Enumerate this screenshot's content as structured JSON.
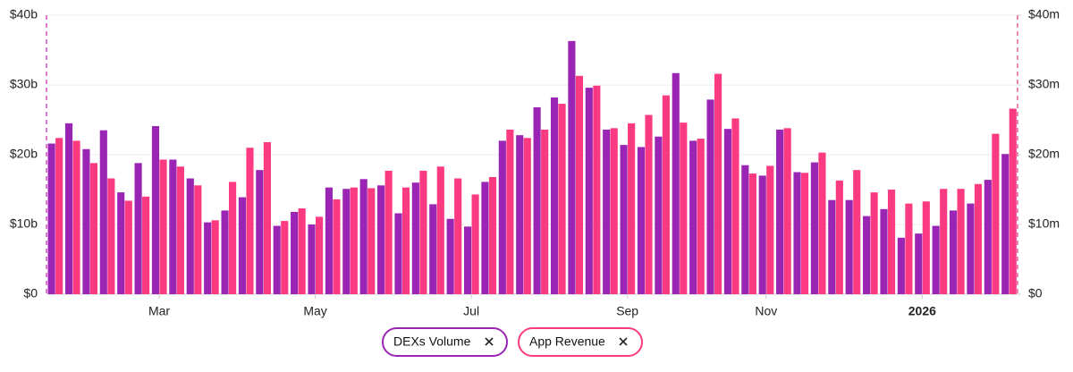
{
  "chart_data": {
    "type": "bar",
    "categories": [
      null,
      null,
      null,
      null,
      null,
      null,
      "Mar",
      null,
      null,
      null,
      null,
      null,
      null,
      null,
      null,
      "May",
      null,
      null,
      null,
      null,
      null,
      null,
      null,
      null,
      "Jul",
      null,
      null,
      null,
      null,
      null,
      null,
      null,
      null,
      "Sep",
      null,
      null,
      null,
      null,
      null,
      null,
      null,
      "Nov",
      null,
      null,
      null,
      null,
      null,
      null,
      null,
      null,
      "2026",
      null,
      null,
      null,
      null,
      null
    ],
    "series": [
      {
        "name": "DEXs Volume",
        "color": "#9a25b5",
        "axis": "y",
        "values": [
          21.6,
          24.5,
          20.8,
          23.5,
          14.6,
          18.8,
          24.1,
          19.3,
          16.6,
          10.3,
          12.0,
          13.9,
          17.8,
          9.8,
          11.8,
          10.0,
          15.3,
          15.1,
          16.5,
          15.6,
          11.6,
          16.0,
          12.9,
          10.8,
          9.7,
          16.1,
          22.0,
          22.8,
          26.8,
          28.2,
          36.3,
          29.6,
          23.6,
          21.4,
          21.1,
          22.6,
          31.7,
          22.0,
          27.9,
          23.7,
          18.5,
          17.0,
          23.6,
          17.5,
          18.9,
          13.5,
          13.5,
          11.2,
          12.2,
          8.1,
          8.7,
          9.8,
          12.0,
          13.0,
          16.4,
          20.1
        ]
      },
      {
        "name": "App Revenue",
        "color": "#fc3a82",
        "axis": "y2",
        "values": [
          22.4,
          22.0,
          18.8,
          16.6,
          13.4,
          14.0,
          19.3,
          18.3,
          15.6,
          10.6,
          16.1,
          21.0,
          21.8,
          10.5,
          12.3,
          11.1,
          13.6,
          15.3,
          15.2,
          17.7,
          15.3,
          17.7,
          18.3,
          16.6,
          14.3,
          16.8,
          23.6,
          22.4,
          23.6,
          27.3,
          31.3,
          29.9,
          23.8,
          24.5,
          25.7,
          28.5,
          24.6,
          22.3,
          31.6,
          25.2,
          17.3,
          18.4,
          23.8,
          17.4,
          20.3,
          16.3,
          17.8,
          14.6,
          15.0,
          13.0,
          13.3,
          15.1,
          15.1,
          15.8,
          23.0,
          26.6
        ]
      }
    ],
    "ylim": [
      0,
      40
    ],
    "yticks": [
      {
        "value": 0,
        "label": "$0"
      },
      {
        "value": 10,
        "label": "$10b"
      },
      {
        "value": 20,
        "label": "$20b"
      },
      {
        "value": 30,
        "label": "$30b"
      },
      {
        "value": 40,
        "label": "$40b"
      }
    ],
    "y2lim": [
      0,
      40
    ],
    "y2ticks": [
      {
        "value": 0,
        "label": "$0"
      },
      {
        "value": 10,
        "label": "$10m"
      },
      {
        "value": 20,
        "label": "$20m"
      },
      {
        "value": 30,
        "label": "$30m"
      },
      {
        "value": 40,
        "label": "$40m"
      }
    ],
    "grid": true
  }
}
